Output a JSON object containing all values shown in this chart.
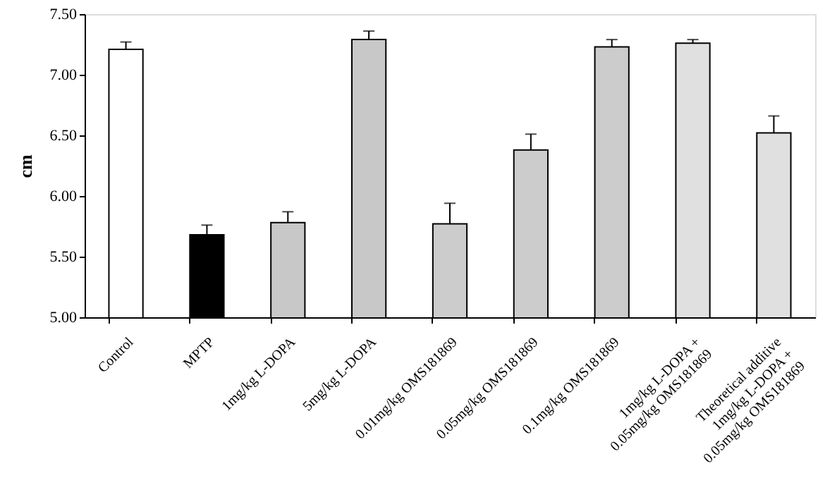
{
  "chart_data": {
    "type": "bar",
    "ylabel": "cm",
    "categories": [
      "Control",
      "MPTP",
      "1mg/kg L-DOPA",
      "5mg/kg L-DOPA",
      "0.01mg/kg OMS181869",
      "0.05mg/kg OMS181869",
      "0.1mg/kg OMS181869",
      "1mg/kg L-DOPA +\n0.05mg/kg OMS181869",
      "Theoretical additive\n1mg/kg L-DOPA +\n0.05mg/kg OMS181869"
    ],
    "values": [
      7.21,
      5.68,
      5.78,
      7.29,
      5.77,
      6.38,
      7.23,
      7.26,
      6.52
    ],
    "errors": [
      [
        7.21,
        7.27
      ],
      [
        5.68,
        5.76
      ],
      [
        5.78,
        5.87
      ],
      [
        7.29,
        7.36
      ],
      [
        5.77,
        5.94
      ],
      [
        6.38,
        6.51
      ],
      [
        7.23,
        7.29
      ],
      [
        7.26,
        7.29
      ],
      [
        6.52,
        6.66
      ]
    ],
    "colors": [
      "#ffffff",
      "#000000",
      "#c8c8c8",
      "#c8c8c8",
      "#cccccc",
      "#cccccc",
      "#cccccc",
      "#e0e0e0",
      "#e0e0e0"
    ],
    "ylim": [
      5.0,
      7.5
    ],
    "yticks": [
      {
        "value": 5.0,
        "label": "5.00"
      },
      {
        "value": 5.5,
        "label": "5.50"
      },
      {
        "value": 6.0,
        "label": "6.00"
      },
      {
        "value": 6.5,
        "label": "6.50"
      },
      {
        "value": 7.0,
        "label": "7.00"
      },
      {
        "value": 7.5,
        "label": "7.50"
      }
    ],
    "grid": false
  }
}
